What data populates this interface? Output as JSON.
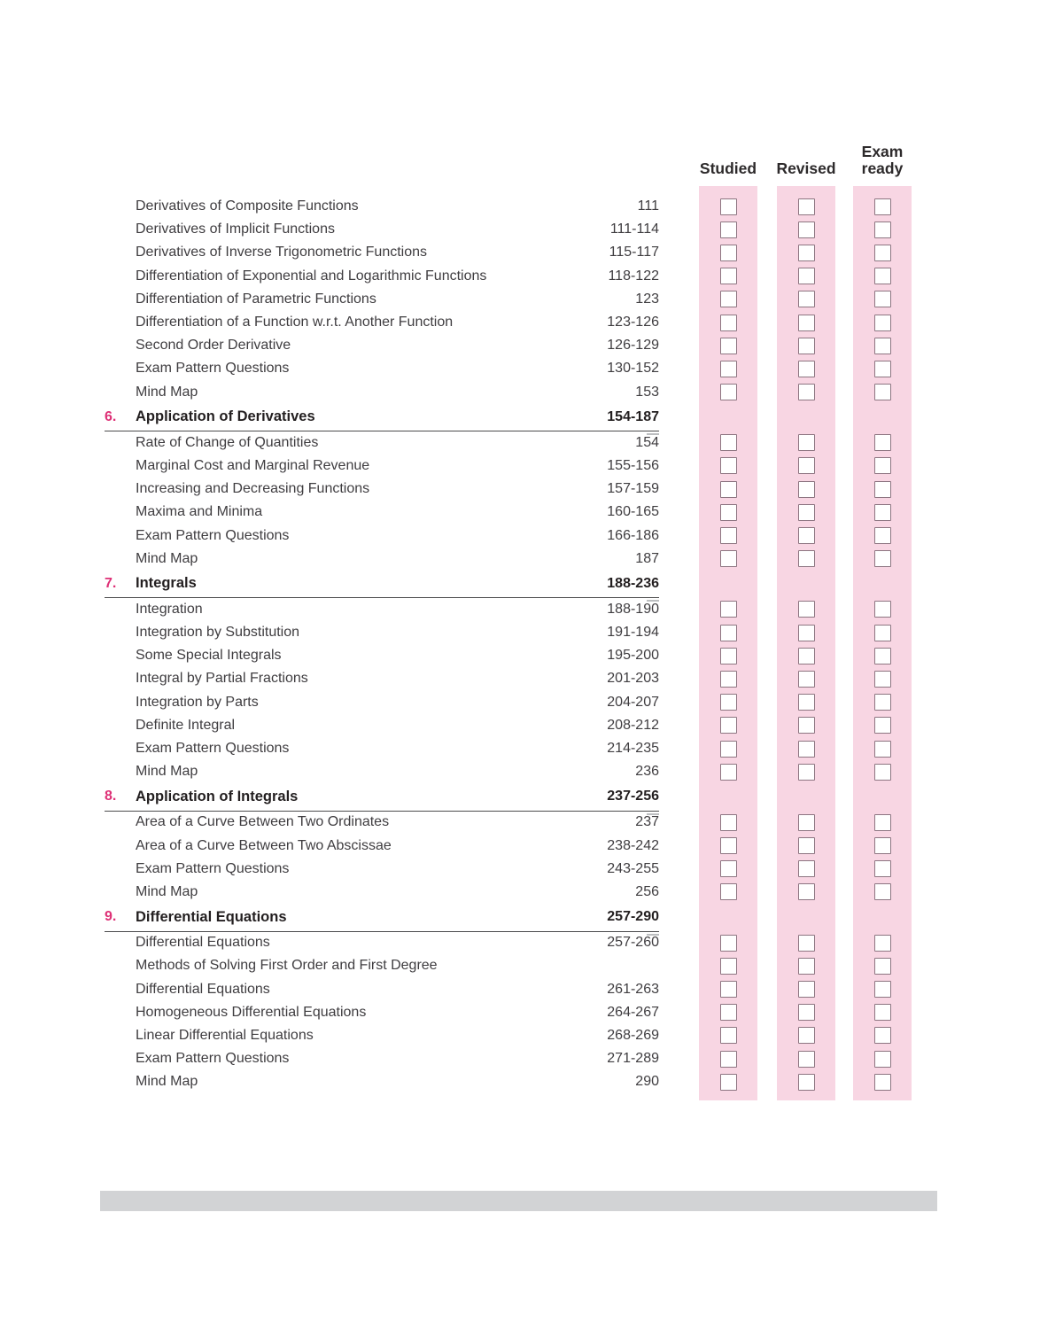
{
  "columns": [
    {
      "label": "Studied"
    },
    {
      "label": "Revised"
    },
    {
      "label": "Exam ready"
    }
  ],
  "colors": {
    "band_pink": "#f8d6e3",
    "checkbox_border": "#8d7581",
    "chapter_number_pink": "#de3076",
    "chapter_text": "#231f20",
    "item_text": "#3f3d40",
    "header_text": "#2d2a2b",
    "divider_gray": "#d2d3d5"
  },
  "checkboxes_checked": false,
  "sections": [
    {
      "chapter": null,
      "items": [
        {
          "title": "Derivatives  of Composite Functions",
          "pages": "111"
        },
        {
          "title": "Derivatives  of Implicit Functions",
          "pages": "111-114"
        },
        {
          "title": "Derivatives of Inverse Trigonometric Functions",
          "pages": "115-117"
        },
        {
          "title": "Differentiation of Exponential and Logarithmic Functions",
          "pages": "118-122"
        },
        {
          "title": "Differentiation of Parametric Functions",
          "pages": "123"
        },
        {
          "title": "Differentiation of a Function w.r.t. Another Function",
          "pages": "123-126"
        },
        {
          "title": "Second Order Derivative",
          "pages": "126-129"
        },
        {
          "title": "Exam Pattern Questions",
          "pages": "130-152"
        },
        {
          "title": "Mind Map",
          "pages": "153"
        }
      ]
    },
    {
      "chapter": {
        "number": "6.",
        "title": "Application of Derivatives",
        "pages": "154-187"
      },
      "items": [
        {
          "title": "Rate of Change of Quantities",
          "pages": "154"
        },
        {
          "title": "Marginal Cost and Marginal Revenue",
          "pages": "155-156"
        },
        {
          "title": "Increasing and Decreasing Functions",
          "pages": "157-159"
        },
        {
          "title": "Maxima and Minima",
          "pages": "160-165"
        },
        {
          "title": "Exam Pattern Questions",
          "pages": "166-186"
        },
        {
          "title": "Mind Map",
          "pages": "187"
        }
      ]
    },
    {
      "chapter": {
        "number": "7.",
        "title": "Integrals",
        "pages": "188-236"
      },
      "items": [
        {
          "title": "Integration",
          "pages": "188-190"
        },
        {
          "title": "Integration by Substitution",
          "pages": "191-194"
        },
        {
          "title": "Some Special Integrals",
          "pages": "195-200"
        },
        {
          "title": "Integral by Partial Fractions",
          "pages": "201-203"
        },
        {
          "title": "Integration by Parts",
          "pages": "204-207"
        },
        {
          "title": "Definite Integral",
          "pages": "208-212"
        },
        {
          "title": "Exam Pattern Questions",
          "pages": "214-235"
        },
        {
          "title": "Mind Map",
          "pages": "236"
        }
      ]
    },
    {
      "chapter": {
        "number": "8.",
        "title": "Application of Integrals",
        "pages": "237-256"
      },
      "items": [
        {
          "title": "Area of a Curve Between Two Ordinates",
          "pages": "237"
        },
        {
          "title": "Area of a Curve Between Two Abscissae",
          "pages": "238-242"
        },
        {
          "title": "Exam Pattern Questions",
          "pages": "243-255"
        },
        {
          "title": "Mind Map",
          "pages": "256"
        }
      ]
    },
    {
      "chapter": {
        "number": "9.",
        "title": "Differential Equations",
        "pages": "257-290"
      },
      "items": [
        {
          "title": "Differential Equations",
          "pages": "257-260"
        },
        {
          "title_lines": [
            "Methods of Solving First Order and First Degree",
            "Differential Equations"
          ],
          "pages": "261-263"
        },
        {
          "title": "Homogeneous Differential Equations",
          "pages": "264-267"
        },
        {
          "title": "Linear Differential Equations",
          "pages": "268-269"
        },
        {
          "title": "Exam Pattern Questions",
          "pages": "271-289"
        },
        {
          "title": "Mind Map",
          "pages": "290"
        }
      ]
    }
  ]
}
